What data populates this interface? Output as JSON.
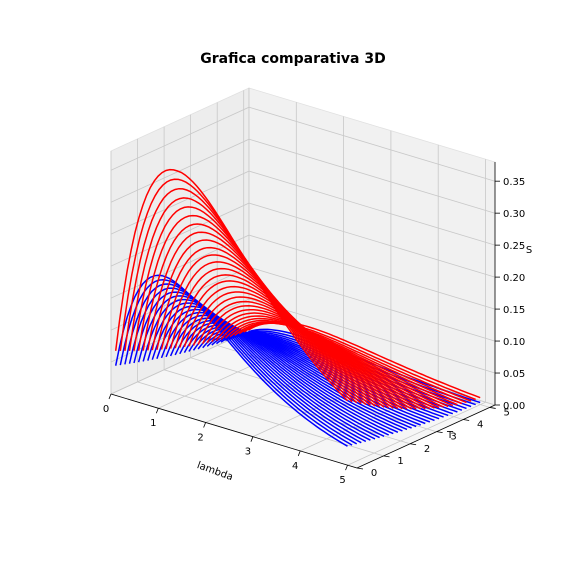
{
  "figure": {
    "title": "Grafica comparativa 3D"
  },
  "chart_data": {
    "type": "line3d",
    "title": "Grafica comparativa 3D",
    "xlabel": "lambda",
    "ylabel": "T",
    "zlabel": "S",
    "xlim": [
      0,
      5.2
    ],
    "ylim": [
      0,
      5.2
    ],
    "zlim": [
      0,
      0.38
    ],
    "xticks": [
      "0",
      "1",
      "2",
      "3",
      "4",
      "5"
    ],
    "yticks": [
      "0",
      "1",
      "2",
      "3",
      "4",
      "5"
    ],
    "zticks": [
      "0.00",
      "0.05",
      "0.10",
      "0.15",
      "0.20",
      "0.25",
      "0.30",
      "0.35"
    ],
    "grid": true,
    "series": [
      {
        "color": "#0000ff",
        "curve_count": 30,
        "x_range": [
          0.1,
          5.0
        ],
        "y_range": [
          0.0,
          5.0
        ],
        "z_max": 0.2,
        "peak_x": 1.2
      },
      {
        "color": "#ff0000",
        "curve_count": 30,
        "x_range": [
          0.1,
          5.0
        ],
        "y_range": [
          0.0,
          5.0
        ],
        "z_max": 0.37,
        "peak_x": 1.5
      }
    ]
  }
}
